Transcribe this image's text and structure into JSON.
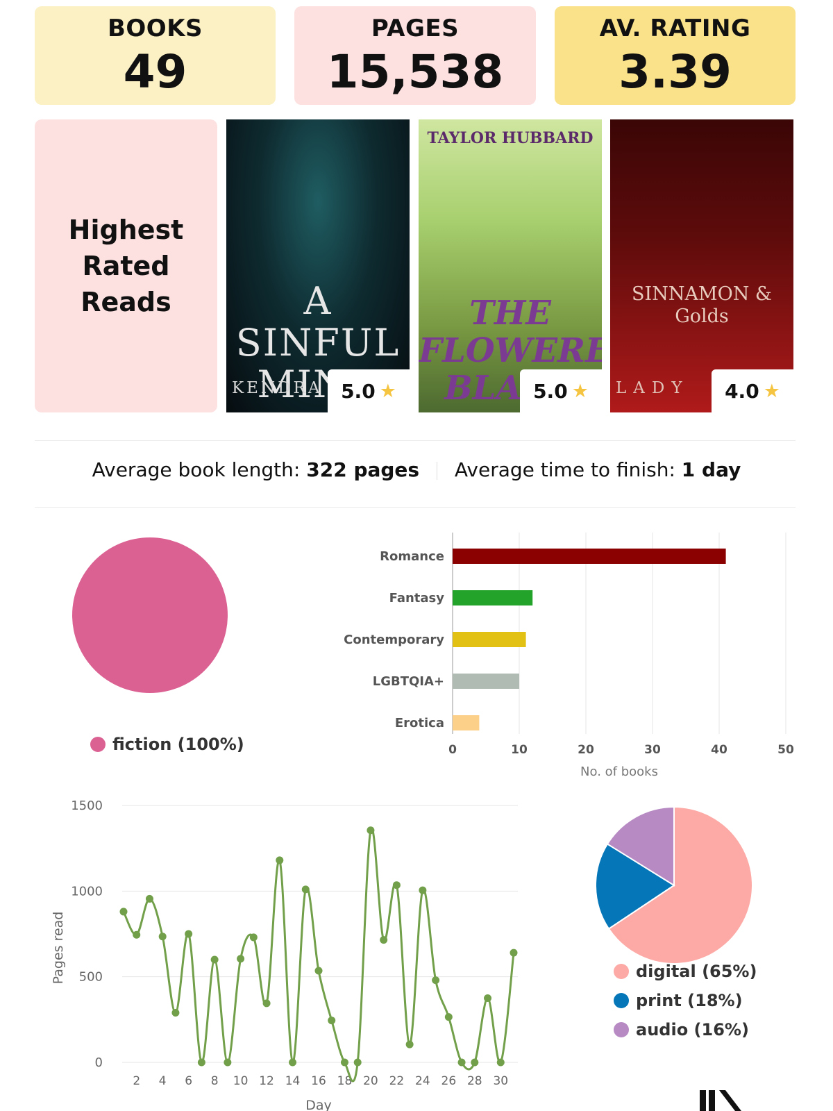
{
  "stats": {
    "books": {
      "label": "BOOKS",
      "value": "49"
    },
    "pages": {
      "label": "PAGES",
      "value": "15,538"
    },
    "rating": {
      "label": "AV. RATING",
      "value": "3.39"
    }
  },
  "highest_rated": {
    "heading": "Highest\nRated\nReads",
    "books": [
      {
        "cover_top": "",
        "cover_title": "A\nSINFUL\nMIND",
        "cover_author": "KENDRA L",
        "rating": "5.0"
      },
      {
        "cover_top": "TAYLOR HUBBARD",
        "cover_title": "THE\nFLOWERED\nBLADE",
        "cover_author": "",
        "rating": "5.0"
      },
      {
        "cover_top": "",
        "cover_title": "SINNAMON &\nGolds",
        "cover_author": "LADY",
        "rating": "4.0"
      }
    ]
  },
  "averages": {
    "length_label": "Average book length:",
    "length_value": "322 pages",
    "time_label": "Average time to finish:",
    "time_value": "1 day"
  },
  "colors": {
    "fiction": "#dc6193",
    "romance": "#8b0000",
    "fantasy": "#24a32a",
    "contemporary": "#e3c014",
    "lgbtqia": "#b0bcb3",
    "erotica": "#fdd08a",
    "digital": "#fdaaa6",
    "print": "#0577b8",
    "audio": "#b78ac4",
    "line": "#72a04a"
  },
  "chart_data": [
    {
      "type": "pie",
      "labels": [
        "fiction"
      ],
      "values": [
        100
      ],
      "legend": [
        "fiction (100%)"
      ],
      "legend_position": "bottom"
    },
    {
      "type": "bar",
      "orientation": "horizontal",
      "categories": [
        "Romance",
        "Fantasy",
        "Contemporary",
        "LGBTQIA+",
        "Erotica"
      ],
      "values": [
        41,
        12,
        11,
        10,
        4
      ],
      "xlabel": "No. of books",
      "xlim": [
        0,
        50
      ],
      "xticks": [
        0,
        10,
        20,
        30,
        40,
        50
      ],
      "grid": true
    },
    {
      "type": "line",
      "x": [
        1,
        2,
        3,
        4,
        5,
        6,
        7,
        8,
        9,
        10,
        11,
        12,
        13,
        14,
        15,
        16,
        17,
        18,
        19,
        20,
        21,
        22,
        23,
        24,
        25,
        26,
        27,
        28,
        29,
        30,
        31
      ],
      "values": [
        880,
        745,
        955,
        735,
        290,
        750,
        0,
        600,
        0,
        605,
        730,
        345,
        1180,
        0,
        1010,
        535,
        245,
        0,
        0,
        1355,
        715,
        1035,
        105,
        1005,
        480,
        265,
        0,
        0,
        375,
        0,
        640
      ],
      "xlabel": "Day",
      "ylabel": "Pages read",
      "ylim": [
        0,
        1500
      ],
      "yticks": [
        0,
        500,
        1000,
        1500
      ],
      "xticks": [
        2,
        4,
        6,
        8,
        10,
        12,
        14,
        16,
        18,
        20,
        22,
        24,
        26,
        28,
        30
      ],
      "grid": true
    },
    {
      "type": "pie",
      "labels": [
        "digital",
        "print",
        "audio"
      ],
      "values": [
        65,
        18,
        16
      ],
      "legend": [
        "digital (65%)",
        "print (18%)",
        "audio (16%)"
      ],
      "legend_position": "bottom"
    }
  ]
}
